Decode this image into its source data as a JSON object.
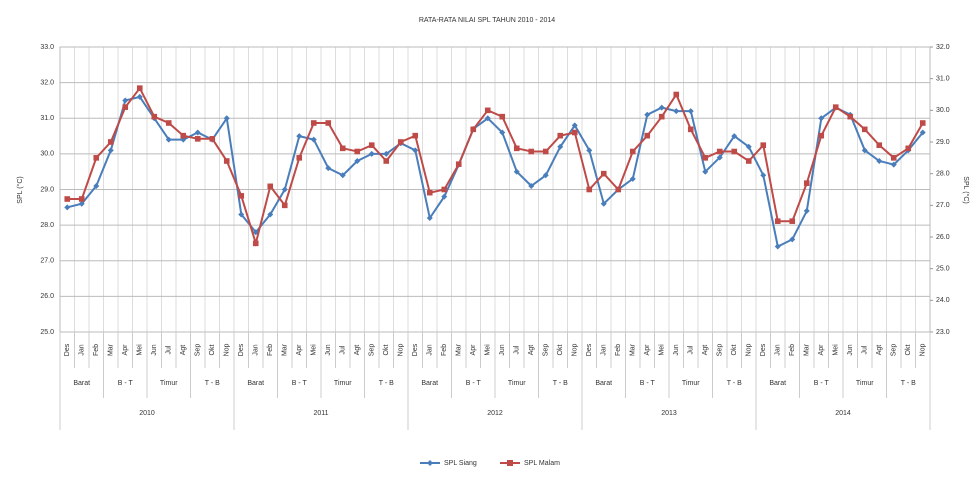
{
  "chart_data": {
    "type": "line",
    "title": "RATA-RATA NILAI SPL TAHUN 2010 - 2014",
    "ylabel": "SPL (°C)",
    "y2label": "SPL (°C)",
    "categories": [
      "Des",
      "Jan",
      "Feb",
      "Mar",
      "Apr",
      "Mei",
      "Jun",
      "Jul",
      "Agt",
      "Sep",
      "Okt",
      "Nop",
      "Des",
      "Jan",
      "Feb",
      "Mar",
      "Apr",
      "Mei",
      "Jun",
      "Jul",
      "Agt",
      "Sep",
      "Okt",
      "Nop",
      "Des",
      "Jan",
      "Feb",
      "Mar",
      "Apr",
      "Mei",
      "Jun",
      "Jul",
      "Agt",
      "Sep",
      "Okt",
      "Nop",
      "Des",
      "Jan",
      "Feb",
      "Mar",
      "Apr",
      "Mei",
      "Jun",
      "Jul",
      "Agt",
      "Sep",
      "Okt",
      "Nop",
      "Des",
      "Jan",
      "Feb",
      "Mar",
      "Apr",
      "Mei",
      "Jun",
      "Jul",
      "Agt",
      "Sep",
      "Okt",
      "Nop"
    ],
    "groups": [
      {
        "year": "2010",
        "seasons": [
          "Barat",
          "B - T",
          "Timur",
          "T - B"
        ]
      },
      {
        "year": "2011",
        "seasons": [
          "Barat",
          "B - T",
          "Timur",
          "T - B"
        ]
      },
      {
        "year": "2012",
        "seasons": [
          "Barat",
          "B - T",
          "Timur",
          "T - B"
        ]
      },
      {
        "year": "2013",
        "seasons": [
          "Barat",
          "B - T",
          "Timur",
          "T - B"
        ]
      },
      {
        "year": "2014",
        "seasons": [
          "Barat",
          "B - T",
          "Timur",
          "T - B"
        ]
      }
    ],
    "series": [
      {
        "name": "SPL Siang",
        "color": "#4a7ebb",
        "marker": "diamond",
        "axis": "y",
        "values": [
          28.5,
          28.6,
          29.1,
          30.1,
          31.5,
          31.6,
          31.0,
          30.4,
          30.4,
          30.6,
          30.4,
          31.0,
          28.3,
          27.8,
          28.3,
          29.0,
          30.5,
          30.4,
          29.6,
          29.4,
          29.8,
          30.0,
          30.0,
          30.3,
          30.1,
          28.2,
          28.8,
          29.7,
          30.7,
          31.0,
          30.6,
          29.5,
          29.1,
          29.4,
          30.2,
          30.8,
          30.1,
          28.6,
          29.0,
          29.3,
          31.1,
          31.3,
          31.2,
          31.2,
          29.5,
          29.9,
          30.5,
          30.2,
          29.4,
          27.4,
          27.6,
          28.4,
          31.0,
          31.3,
          31.1,
          30.1,
          29.8,
          29.7,
          30.1,
          30.6
        ]
      },
      {
        "name": "SPL Malam",
        "color": "#be4b48",
        "marker": "square",
        "axis": "y2",
        "values": [
          27.2,
          27.2,
          28.5,
          29.0,
          30.1,
          30.7,
          29.8,
          29.6,
          29.2,
          29.1,
          29.1,
          28.4,
          27.3,
          25.8,
          27.6,
          27.0,
          28.5,
          29.6,
          29.6,
          28.8,
          28.7,
          28.9,
          28.4,
          29.0,
          29.2,
          27.4,
          27.5,
          28.3,
          29.4,
          30.0,
          29.8,
          28.8,
          28.7,
          28.7,
          29.2,
          29.3,
          27.5,
          28.0,
          27.5,
          28.7,
          29.2,
          29.8,
          30.5,
          29.4,
          28.5,
          28.7,
          28.7,
          28.4,
          28.9,
          26.5,
          26.5,
          27.7,
          29.2,
          30.1,
          29.8,
          29.4,
          28.9,
          28.5,
          28.8,
          29.6
        ]
      }
    ],
    "ylim": [
      25,
      33
    ],
    "yticks": [
      {
        "value": 25,
        "label": "25.0"
      },
      {
        "value": 26,
        "label": "26.0"
      },
      {
        "value": 27,
        "label": "27.0"
      },
      {
        "value": 28,
        "label": "28.0"
      },
      {
        "value": 29,
        "label": "29.0"
      },
      {
        "value": 30,
        "label": "30.0"
      },
      {
        "value": 31,
        "label": "31.0"
      },
      {
        "value": 32,
        "label": "32.0"
      },
      {
        "value": 33,
        "label": "33.0"
      }
    ],
    "y2lim": [
      23,
      32
    ],
    "y2ticks": [
      {
        "value": 23,
        "label": "23.0"
      },
      {
        "value": 24,
        "label": "24.0"
      },
      {
        "value": 25,
        "label": "25.0"
      },
      {
        "value": 26,
        "label": "26.0"
      },
      {
        "value": 27,
        "label": "27.0"
      },
      {
        "value": 28,
        "label": "28.0"
      },
      {
        "value": 29,
        "label": "29.0"
      },
      {
        "value": 30,
        "label": "30.0"
      },
      {
        "value": 31,
        "label": "31.0"
      },
      {
        "value": 32,
        "label": "32.0"
      }
    ],
    "grid": true,
    "legend": "bottom"
  }
}
